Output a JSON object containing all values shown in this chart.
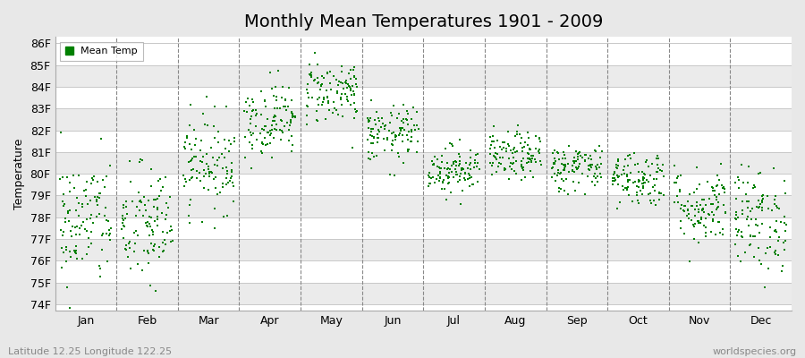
{
  "title": "Monthly Mean Temperatures 1901 - 2009",
  "ylabel": "Temperature",
  "xlabel": "",
  "legend_label": "Mean Temp",
  "footnote_left": "Latitude 12.25 Longitude 122.25",
  "footnote_right": "worldspecies.org",
  "ylim": [
    74,
    86
  ],
  "yticks": [
    "74F",
    "75F",
    "76F",
    "77F",
    "78F",
    "79F",
    "80F",
    "81F",
    "82F",
    "83F",
    "84F",
    "85F",
    "86F"
  ],
  "months": [
    "Jan",
    "Feb",
    "Mar",
    "Apr",
    "May",
    "Jun",
    "Jul",
    "Aug",
    "Sep",
    "Oct",
    "Nov",
    "Dec"
  ],
  "dot_color": "#008000",
  "bg_color": "#E8E8E8",
  "plot_bg_color": "#FFFFFF",
  "grid_color": "#C8C8C8",
  "alt_band_color": "#EBEBEB",
  "title_fontsize": 14,
  "axis_fontsize": 9,
  "footnote_fontsize": 8,
  "scatter_size": 4,
  "years": 109,
  "seed": 42,
  "monthly_means": [
    77.8,
    77.6,
    80.5,
    82.5,
    83.8,
    81.8,
    80.2,
    80.8,
    80.3,
    79.8,
    78.5,
    77.9
  ],
  "monthly_stds": [
    1.5,
    1.4,
    1.1,
    0.85,
    0.75,
    0.65,
    0.55,
    0.55,
    0.55,
    0.65,
    0.9,
    1.2
  ]
}
